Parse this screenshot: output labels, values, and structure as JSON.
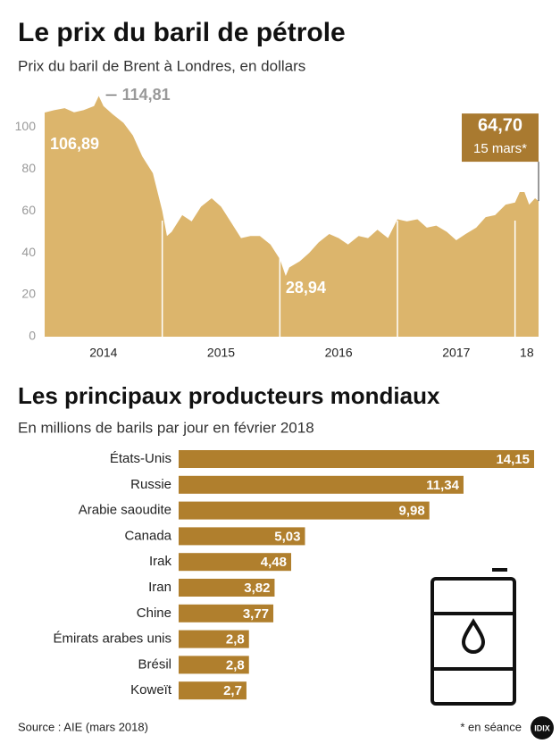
{
  "chart_data": [
    {
      "type": "area",
      "title": "Le prix du baril de pétrole",
      "subtitle": "Prix du baril de Brent à Londres, en dollars",
      "color": "#dcb56c",
      "x": [
        2014.0,
        2014.08,
        2014.17,
        2014.25,
        2014.33,
        2014.42,
        2014.46,
        2014.5,
        2014.58,
        2014.67,
        2014.75,
        2014.83,
        2014.92,
        2015.0,
        2015.04,
        2015.08,
        2015.17,
        2015.25,
        2015.33,
        2015.42,
        2015.5,
        2015.58,
        2015.67,
        2015.75,
        2015.83,
        2015.92,
        2016.0,
        2016.05,
        2016.08,
        2016.17,
        2016.25,
        2016.33,
        2016.42,
        2016.5,
        2016.58,
        2016.67,
        2016.75,
        2016.83,
        2016.92,
        2017.0,
        2017.08,
        2017.17,
        2017.25,
        2017.33,
        2017.42,
        2017.5,
        2017.58,
        2017.67,
        2017.75,
        2017.83,
        2017.92,
        2018.0,
        2018.04,
        2018.08,
        2018.12,
        2018.17,
        2018.2
      ],
      "values": [
        106.89,
        108,
        109,
        107,
        108,
        110,
        114.81,
        110,
        106,
        102,
        96,
        86,
        78,
        60,
        48,
        50,
        58,
        55,
        62,
        66,
        62,
        55,
        47,
        48,
        48,
        44,
        37,
        28.94,
        33,
        36,
        40,
        45,
        49,
        47,
        44,
        48,
        47,
        51,
        47,
        56,
        55,
        56,
        52,
        53,
        50,
        46,
        49,
        52,
        57,
        58,
        63,
        64,
        69,
        69,
        63,
        66,
        64.7
      ],
      "xlim": [
        2014,
        2018.2
      ],
      "xticks": [
        2014,
        2015,
        2016,
        2017,
        {
          "value": 2018,
          "label": "18"
        }
      ],
      "ylim": [
        0,
        115
      ],
      "yticks": [
        0,
        20,
        40,
        60,
        80,
        100
      ],
      "grid": false,
      "annotations": [
        {
          "label": "106,89",
          "x": 2014.0,
          "value": 106.89
        },
        {
          "label": "114,81",
          "x": 2014.46,
          "value": 114.81
        },
        {
          "label": "28,94",
          "x": 2016.05,
          "value": 28.94
        },
        {
          "label": "64,70",
          "note": "15 mars*",
          "x": 2018.2,
          "value": 64.7
        }
      ]
    },
    {
      "type": "bar",
      "orientation": "horizontal",
      "title": "Les principaux producteurs mondiaux",
      "subtitle": "En millions de barils par jour en février 2018",
      "color": "#b07f2d",
      "categories": [
        "États-Unis",
        "Russie",
        "Arabie saoudite",
        "Canada",
        "Irak",
        "Iran",
        "Chine",
        "Émirats arabes unis",
        "Brésil",
        "Koweït"
      ],
      "values": [
        14.15,
        11.34,
        9.98,
        5.03,
        4.48,
        3.82,
        3.77,
        2.8,
        2.8,
        2.7
      ],
      "value_labels": [
        "14,15",
        "11,34",
        "9,98",
        "5,03",
        "4,48",
        "3,82",
        "3,77",
        "2,8",
        "2,8",
        "2,7"
      ]
    }
  ],
  "footer": {
    "source": "Source : AIE (mars 2018)",
    "note": "* en séance",
    "logo": "IDIX"
  }
}
